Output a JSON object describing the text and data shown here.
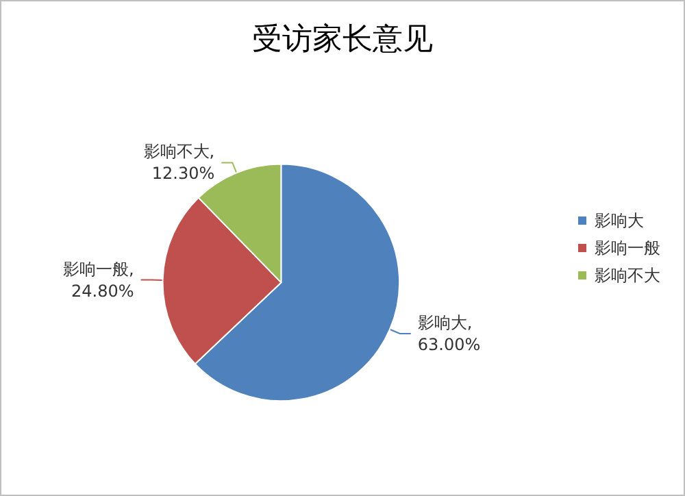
{
  "chart_data": {
    "type": "pie",
    "title": "受访家长意见",
    "categories": [
      "影响大",
      "影响一般",
      "影响不大"
    ],
    "values": [
      63.0,
      24.8,
      12.3
    ],
    "value_labels": [
      "影响大,\n63.00%",
      "影响一般,\n24.80%",
      "影响不大,\n12.30%"
    ],
    "colors": [
      "#4f81bd",
      "#c0504d",
      "#9bbb59"
    ],
    "legend": "right"
  }
}
